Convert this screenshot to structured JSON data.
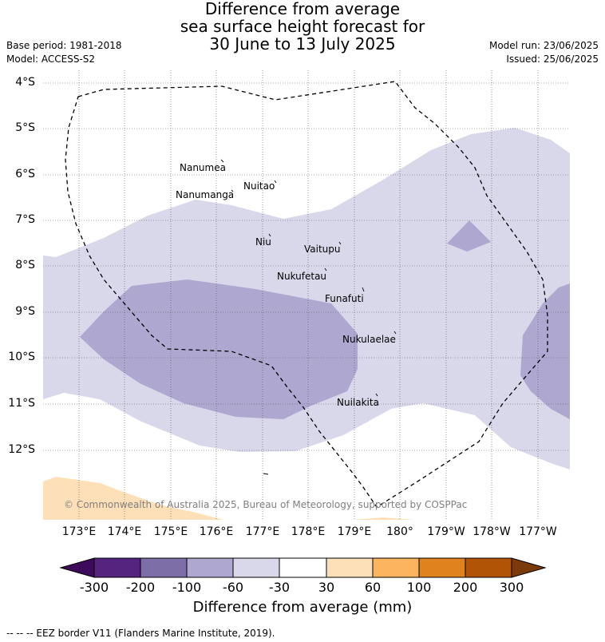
{
  "title_lines": [
    "Difference from average",
    "sea surface height forecast for",
    "30 June to 13 July 2025"
  ],
  "meta": {
    "base_period": "Base period: 1981-2018",
    "model": "Model: ACCESS-S2",
    "model_run": "Model run: 23/06/2025",
    "issued": "Issued: 25/06/2025"
  },
  "lat_labels": [
    "4°S",
    "5°S",
    "6°S",
    "7°S",
    "8°S",
    "9°S",
    "10°S",
    "11°S",
    "12°S"
  ],
  "lon_labels": [
    "173°E",
    "174°E",
    "175°E",
    "176°E",
    "177°E",
    "178°E",
    "179°E",
    "180°",
    "179°W",
    "178°W",
    "177°W"
  ],
  "places": [
    {
      "name": "Nanumea"
    },
    {
      "name": "Nuitao"
    },
    {
      "name": "Nanumanga"
    },
    {
      "name": "Niu"
    },
    {
      "name": "Vaitupu"
    },
    {
      "name": "Nukufetau"
    },
    {
      "name": "Funafuti"
    },
    {
      "name": "Nukulaelae"
    },
    {
      "name": "Nuilakita"
    }
  ],
  "copyright": "© Commonwealth of Australia 2025, Bureau of Meteorology, supported by COSPPac",
  "colorbar": {
    "ticks": [
      "-300",
      "-200",
      "-100",
      "-60",
      "-30",
      "30",
      "60",
      "100",
      "200",
      "300"
    ],
    "colors": [
      "#3d0a5c",
      "#54247f",
      "#7d6ea8",
      "#aea7d0",
      "#d8d8ea",
      "#ffffff",
      "#fde0b8",
      "#fdb45e",
      "#e0821e",
      "#b25406",
      "#7a3a0a"
    ],
    "label": "Difference from average (mm)"
  },
  "legend_note": "--  --  -- EEZ border V11 (Flanders Marine Institute, 2019).",
  "map_colors": {
    "light": "#d8d8ea",
    "medium": "#aea7d0",
    "land_positive": "#fde0b8"
  }
}
